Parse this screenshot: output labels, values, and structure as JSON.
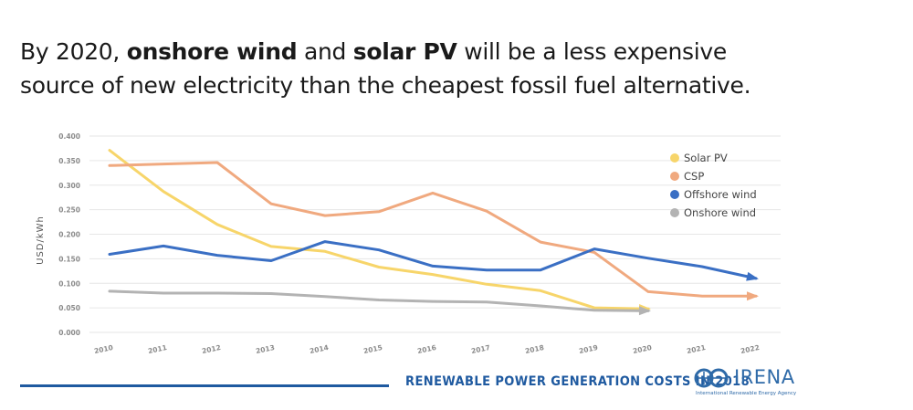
{
  "headline": {
    "line1_pre": "By 2020, ",
    "bold1": "onshore wind",
    "mid": " and ",
    "bold2": "solar PV",
    "line1_post": " will be a less expensive",
    "line2": "source of new electricity than the cheapest fossil fuel alternative."
  },
  "footer": {
    "title": "RENEWABLE POWER GENERATION COSTS IN 2018",
    "logo_word": "IRENA",
    "logo_sub": "International Renewable Energy Agency"
  },
  "chart_data": {
    "type": "line",
    "ylabel": "USD/kWh",
    "ylim": [
      0,
      0.4
    ],
    "yticks": [
      "0.000",
      "0.050",
      "0.100",
      "0.150",
      "0.200",
      "0.250",
      "0.300",
      "0.350",
      "0.400"
    ],
    "categories": [
      "2010",
      "2011",
      "2012",
      "2013",
      "2014",
      "2015",
      "2016",
      "2017",
      "2018",
      "2019",
      "2020",
      "2021",
      "2022"
    ],
    "grid": true,
    "legend_position": "top-right",
    "series": [
      {
        "name": "Solar PV",
        "color": "#f7d56a",
        "values": [
          0.371,
          0.287,
          0.22,
          0.175,
          0.165,
          0.133,
          0.118,
          0.098,
          0.085,
          0.05,
          0.048,
          null,
          null
        ]
      },
      {
        "name": "CSP",
        "color": "#f0a97f",
        "values": [
          0.34,
          0.343,
          0.346,
          0.262,
          0.238,
          0.246,
          0.284,
          0.247,
          0.184,
          0.163,
          0.083,
          0.074,
          0.074
        ]
      },
      {
        "name": "Offshore wind",
        "color": "#3a6fc4",
        "values": [
          0.159,
          0.176,
          0.157,
          0.146,
          0.185,
          0.168,
          0.135,
          0.127,
          0.127,
          0.17,
          0.151,
          0.134,
          0.11
        ]
      },
      {
        "name": "Onshore wind",
        "color": "#b3b3b3",
        "values": [
          0.084,
          0.08,
          0.08,
          0.079,
          0.073,
          0.066,
          0.063,
          0.062,
          0.054,
          0.045,
          0.044,
          null,
          null
        ]
      }
    ]
  }
}
